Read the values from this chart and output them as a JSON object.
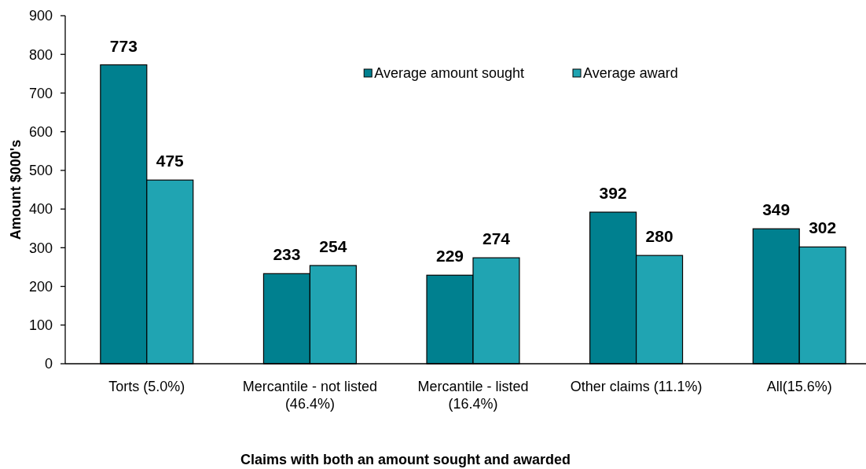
{
  "chart_data": {
    "type": "bar",
    "xlabel": "Claims with both an amount sought and awarded",
    "ylabel": "Amount $000's",
    "categories": [
      "Torts (5.0%)",
      "Mercantile - not listed (46.4%)",
      "Mercantile - listed (16.4%)",
      "Other claims (11.1%)",
      "All(15.6%)"
    ],
    "series": [
      {
        "name": "Average amount sought",
        "color": "#00808f",
        "values": [
          773,
          233,
          229,
          392,
          349
        ]
      },
      {
        "name": "Average award",
        "color": "#20a4b2",
        "values": [
          475,
          254,
          274,
          280,
          302
        ]
      }
    ],
    "ylim": [
      0,
      900
    ],
    "yticks": [
      0,
      100,
      200,
      300,
      400,
      500,
      600,
      700,
      800,
      900
    ],
    "data_labels": true,
    "legend": "top",
    "grid": false
  }
}
